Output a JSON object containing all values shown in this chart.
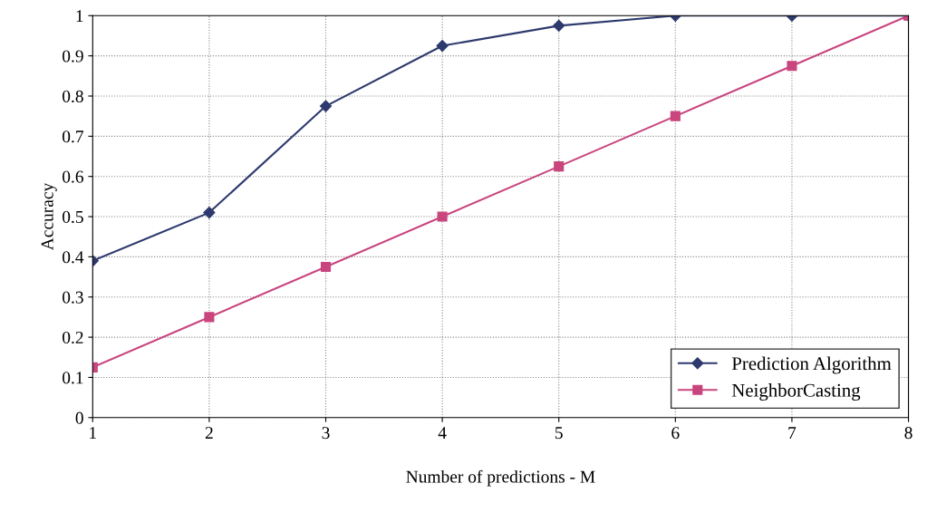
{
  "chart_data": {
    "type": "line",
    "xlabel": "Number of predictions - M",
    "ylabel": "Accuracy",
    "x": [
      1,
      2,
      3,
      4,
      5,
      6,
      7,
      8
    ],
    "series": [
      {
        "name": "Prediction Algorithm",
        "color": "#2e3a6e",
        "marker": "diamond",
        "values": [
          0.39,
          0.51,
          0.775,
          0.925,
          0.975,
          1.0,
          1.0,
          1.0
        ]
      },
      {
        "name": "NeighborCasting",
        "color": "#c9457e",
        "marker": "square",
        "values": [
          0.125,
          0.25,
          0.375,
          0.5,
          0.625,
          0.75,
          0.875,
          1.0
        ]
      }
    ],
    "xlim": [
      1,
      8
    ],
    "xticks": [
      1,
      2,
      3,
      4,
      5,
      6,
      7,
      8
    ],
    "ylim": [
      0,
      1
    ],
    "yticks": [
      0,
      0.1,
      0.2,
      0.3,
      0.4,
      0.5,
      0.6,
      0.7,
      0.8,
      0.9,
      1
    ],
    "grid": true,
    "legend": "bottom right",
    "line_style": "solid"
  }
}
